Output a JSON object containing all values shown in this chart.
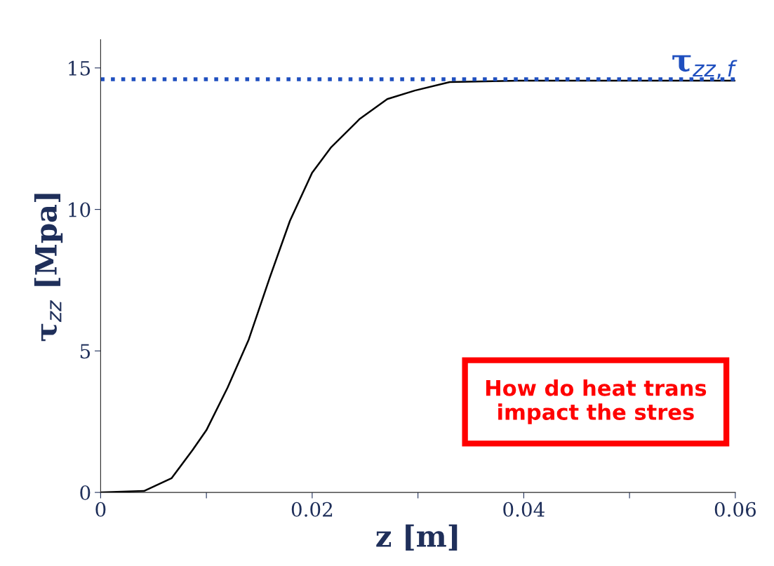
{
  "chart_data": {
    "type": "line",
    "xlabel": "z [m]",
    "ylabel": "τ$_{zz}$ [Mpa]",
    "x": [
      0,
      0.0041,
      0.0067,
      0.0087,
      0.01,
      0.012,
      0.014,
      0.016,
      0.0179,
      0.02,
      0.0218,
      0.0245,
      0.0271,
      0.0297,
      0.033,
      0.0396,
      0.06
    ],
    "series": [
      {
        "color": "#000000",
        "values": [
          0,
          0.05,
          0.5,
          1.5,
          2.2,
          3.7,
          5.4,
          7.6,
          9.6,
          11.3,
          12.2,
          13.2,
          13.9,
          14.2,
          14.5,
          14.55,
          14.55
        ]
      }
    ],
    "xlim": [
      0,
      0.06
    ],
    "ylim": [
      0,
      16
    ],
    "xticks": [
      0,
      {
        "value": 0.01,
        "label": null
      },
      0.02,
      {
        "value": 0.03,
        "label": null
      },
      0.04,
      {
        "value": 0.05,
        "label": null
      },
      0.06
    ],
    "yticks": [
      0,
      5,
      10,
      15
    ],
    "ref_lines": [
      {
        "axis": "y",
        "value": 14.6,
        "label": "τ$_{zz,f}$",
        "color": "#1f4fbf",
        "line_style": "dotted"
      }
    ],
    "annotations": [
      "How do heat trans\nimpact the stres"
    ],
    "grid": false,
    "marker": "none",
    "line_style": "solid"
  }
}
